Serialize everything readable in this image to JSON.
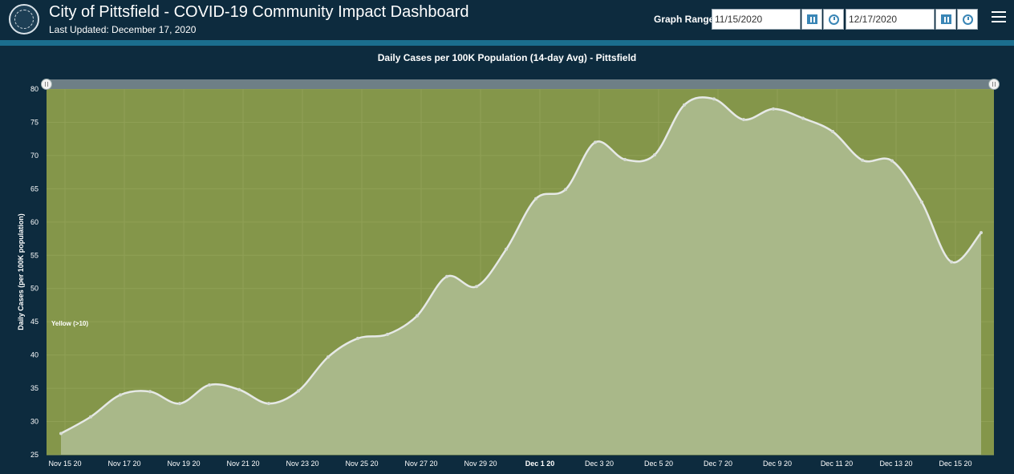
{
  "header": {
    "title": "City of Pittsfield - COVID-19 Community Impact Dashboard",
    "last_updated": "Last Updated: December 17, 2020",
    "logo_icon": "city-seal-icon"
  },
  "controls": {
    "graph_range_label": "Graph Range",
    "start_date": "11/15/2020",
    "end_date": "12/17/2020",
    "calendar_icon": "calendar-icon",
    "clock_icon": "clock-icon",
    "menu_icon": "hamburger-menu-icon"
  },
  "colors": {
    "header_bg": "#0d2b3e",
    "accent": "#1b6e8e",
    "plot_bg": "#84964a",
    "area_fill": "#a9b889",
    "line": "#e6e9e6"
  },
  "chart_data": {
    "type": "area",
    "title": "Daily Cases per 100K Population (14-day Avg) - Pittsfield",
    "xlabel": "",
    "ylabel": "Daily Cases (per 100K population)",
    "ylim": [
      25,
      80
    ],
    "yticks": [
      25,
      30,
      35,
      40,
      45,
      50,
      55,
      60,
      65,
      70,
      75,
      80
    ],
    "grid": true,
    "x": [
      "2020-11-15",
      "2020-11-16",
      "2020-11-17",
      "2020-11-18",
      "2020-11-19",
      "2020-11-20",
      "2020-11-21",
      "2020-11-22",
      "2020-11-23",
      "2020-11-24",
      "2020-11-25",
      "2020-11-26",
      "2020-11-27",
      "2020-11-28",
      "2020-11-29",
      "2020-11-30",
      "2020-12-01",
      "2020-12-02",
      "2020-12-03",
      "2020-12-04",
      "2020-12-05",
      "2020-12-06",
      "2020-12-07",
      "2020-12-08",
      "2020-12-09",
      "2020-12-10",
      "2020-12-11",
      "2020-12-12",
      "2020-12-13",
      "2020-12-14",
      "2020-12-15",
      "2020-12-16"
    ],
    "xtick_labels": [
      "Nov 15 20",
      "Nov 17 20",
      "Nov 19 20",
      "Nov 21 20",
      "Nov 23 20",
      "Nov 25 20",
      "Nov 27 20",
      "Nov 29 20",
      "Dec 1 20",
      "Dec 3 20",
      "Dec 5 20",
      "Dec 7 20",
      "Dec 9 20",
      "Dec 11 20",
      "Dec 13 20",
      "Dec 15 20"
    ],
    "bold_tick": "Dec 1 20",
    "values": [
      28.2,
      30.7,
      34.0,
      34.5,
      32.7,
      35.5,
      34.8,
      32.7,
      34.6,
      39.7,
      42.5,
      43.1,
      45.9,
      51.8,
      50.3,
      55.9,
      63.5,
      64.9,
      72.0,
      69.4,
      70.1,
      77.6,
      78.5,
      75.4,
      77.0,
      75.6,
      73.6,
      69.3,
      69.2,
      63.0,
      54.0,
      58.4
    ],
    "threshold": {
      "value": 10,
      "label": "Yellow (>10)"
    }
  }
}
